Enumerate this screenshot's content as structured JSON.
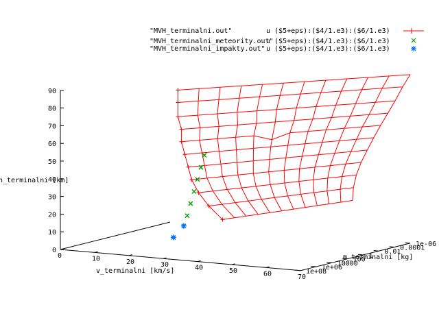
{
  "chart_data": {
    "type": "surface3d",
    "zlabel": "h_terminalni [km]",
    "xlabel": "v_terminalni [km/s]",
    "ylabel": "m_terminalni [kg]",
    "zlim": [
      0,
      90
    ],
    "xlim": [
      0,
      70
    ],
    "ylim_log10": [
      -6,
      8
    ],
    "ticks": {
      "z": [
        "0",
        "10",
        "20",
        "30",
        "40",
        "50",
        "60",
        "70",
        "80",
        "90"
      ],
      "x": [
        "0",
        "10",
        "20",
        "30",
        "40",
        "50",
        "60",
        "70"
      ],
      "y": [
        "1e-06",
        "0.0001",
        "0.01",
        "1",
        "100",
        "10000",
        "1e+06",
        "1e+08"
      ]
    },
    "legend": {
      "position": "top-right",
      "entries": [
        {
          "file": "\"MVH_terminalni.out\"",
          "using": "u ($5+eps):($4/1.e3):($6/1.e3)",
          "marker": "+",
          "color": "#ff0000",
          "line": true
        },
        {
          "file": "\"MVH_terminalni_meteority.out\"",
          "using": "u ($5+eps):($4/1.e3):($6/1.e3)",
          "marker": "x",
          "color": "#00a000",
          "line": false
        },
        {
          "file": "\"MVH_terminalni_impakty.out\"",
          "using": "u ($5+eps):($4/1.e3):($6/1.e3)",
          "marker": "*",
          "color": "#0070ff",
          "line": false
        }
      ]
    },
    "series": [
      {
        "name": "\"MVH_terminalni.out\"",
        "description": "surface grid: rows = height levels, columns = velocity/mass samples",
        "height_levels_km": [
          84,
          77,
          69,
          62,
          55,
          48,
          41,
          34,
          27,
          20,
          13
        ],
        "front_edge_velocity_km_s": [
          16,
          16,
          16,
          17,
          17,
          18,
          19,
          20,
          22,
          25,
          29
        ]
      },
      {
        "name": "\"MVH_terminalni_meteority.out\"",
        "points": [
          {
            "v": 18,
            "m": 0.5,
            "h": 13
          },
          {
            "v": 19,
            "m": 0.5,
            "h": 20
          },
          {
            "v": 20,
            "m": 0.5,
            "h": 27
          },
          {
            "v": 21,
            "m": 0.5,
            "h": 34
          },
          {
            "v": 22,
            "m": 0.5,
            "h": 41
          },
          {
            "v": 23,
            "m": 0.5,
            "h": 48
          }
        ]
      },
      {
        "name": "\"MVH_terminalni_impakty.out\"",
        "points": [
          {
            "v": 14,
            "m": 0.5,
            "h": 0
          },
          {
            "v": 17,
            "m": 0.5,
            "h": 7
          }
        ]
      }
    ]
  }
}
